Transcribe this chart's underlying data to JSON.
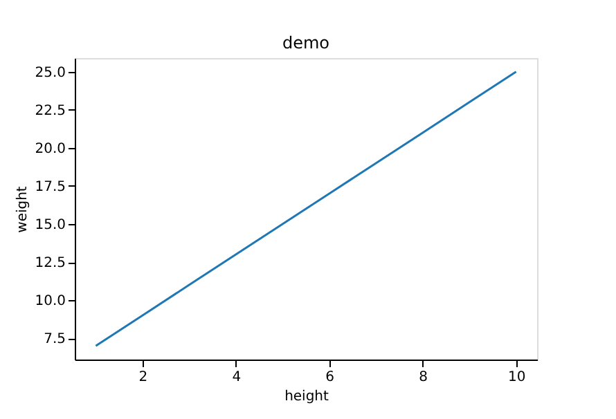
{
  "chart_data": {
    "type": "line",
    "title": "demo",
    "xlabel": "height",
    "ylabel": "weight",
    "x": [
      1,
      2,
      3,
      4,
      5,
      6,
      7,
      8,
      9,
      10
    ],
    "series": [
      {
        "color": "#1f77b4",
        "values": [
          7,
          9,
          11,
          13,
          15,
          17,
          19,
          21,
          23,
          25
        ]
      }
    ],
    "xlim": [
      0.55,
      10.45
    ],
    "xticks": [
      2,
      4,
      6,
      8,
      10
    ],
    "ylim": [
      6.1,
      25.9
    ],
    "yticks": [
      {
        "value": 7.5,
        "label": "7.5"
      },
      {
        "value": 10,
        "label": "10.0"
      },
      {
        "value": 12.5,
        "label": "12.5"
      },
      {
        "value": 15,
        "label": "15.0"
      },
      {
        "value": 17.5,
        "label": "17.5"
      },
      {
        "value": 20,
        "label": "20.0"
      },
      {
        "value": 22.5,
        "label": "22.5"
      },
      {
        "value": 25,
        "label": "25.0"
      }
    ],
    "grid": false,
    "marker": "none",
    "line_style": "solid"
  }
}
